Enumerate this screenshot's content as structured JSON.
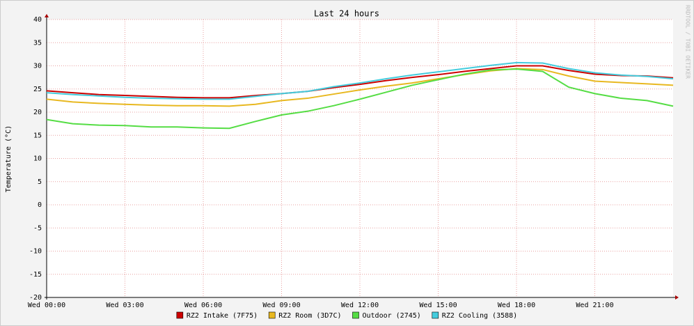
{
  "chart_data": {
    "type": "line",
    "title": "Last 24 hours",
    "y_label": "Temperature (°C)",
    "watermark": "RRDTOOL / TOBI OETIKER",
    "x": [
      0,
      1,
      2,
      3,
      4,
      5,
      6,
      7,
      8,
      9,
      10,
      11,
      12,
      13,
      14,
      15,
      16,
      17,
      18,
      19,
      20,
      21,
      22,
      23,
      24
    ],
    "xlim": [
      0,
      24
    ],
    "xticks": [
      {
        "value": 0,
        "label": "Wed 00:00"
      },
      {
        "value": 3,
        "label": "Wed 03:00"
      },
      {
        "value": 6,
        "label": "Wed 06:00"
      },
      {
        "value": 9,
        "label": "Wed 09:00"
      },
      {
        "value": 12,
        "label": "Wed 12:00"
      },
      {
        "value": 15,
        "label": "Wed 15:00"
      },
      {
        "value": 18,
        "label": "Wed 18:00"
      },
      {
        "value": 21,
        "label": "Wed 21:00"
      }
    ],
    "ylim": [
      -20,
      40
    ],
    "yticks": [
      -20,
      -15,
      -10,
      -5,
      0,
      5,
      10,
      15,
      20,
      25,
      30,
      35,
      40
    ],
    "grid": true,
    "legend": "bottom",
    "series": [
      {
        "name": "RZ2 Intake (7F75)",
        "color": "#cc0000",
        "values": [
          24.6,
          24.2,
          23.8,
          23.6,
          23.4,
          23.2,
          23.1,
          23.1,
          23.6,
          24.0,
          24.5,
          25.3,
          26.0,
          26.8,
          27.5,
          28.1,
          28.8,
          29.4,
          30.0,
          30.0,
          29.0,
          28.2,
          27.9,
          27.8,
          27.4
        ]
      },
      {
        "name": "RZ2 Room (3D7C)",
        "color": "#e8b820",
        "values": [
          22.8,
          22.2,
          21.9,
          21.7,
          21.5,
          21.4,
          21.4,
          21.3,
          21.7,
          22.5,
          23.0,
          23.9,
          24.8,
          25.6,
          26.3,
          27.2,
          28.1,
          28.9,
          29.4,
          29.2,
          27.8,
          26.7,
          26.4,
          26.1,
          25.8
        ]
      },
      {
        "name": "Outdoor (2745)",
        "color": "#55dd44",
        "values": [
          18.4,
          17.5,
          17.2,
          17.1,
          16.8,
          16.8,
          16.6,
          16.5,
          18.0,
          19.4,
          20.2,
          21.4,
          22.8,
          24.3,
          25.8,
          27.0,
          28.2,
          29.1,
          29.3,
          28.8,
          25.4,
          24.0,
          23.0,
          22.5,
          21.3
        ]
      },
      {
        "name": "RZ2 Cooling (3588)",
        "color": "#44ccdd",
        "values": [
          24.2,
          23.8,
          23.5,
          23.2,
          23.0,
          22.9,
          22.8,
          22.8,
          23.4,
          24.0,
          24.5,
          25.5,
          26.3,
          27.2,
          28.0,
          28.7,
          29.4,
          30.1,
          30.7,
          30.6,
          29.4,
          28.5,
          28.0,
          27.7,
          27.2
        ]
      }
    ]
  }
}
